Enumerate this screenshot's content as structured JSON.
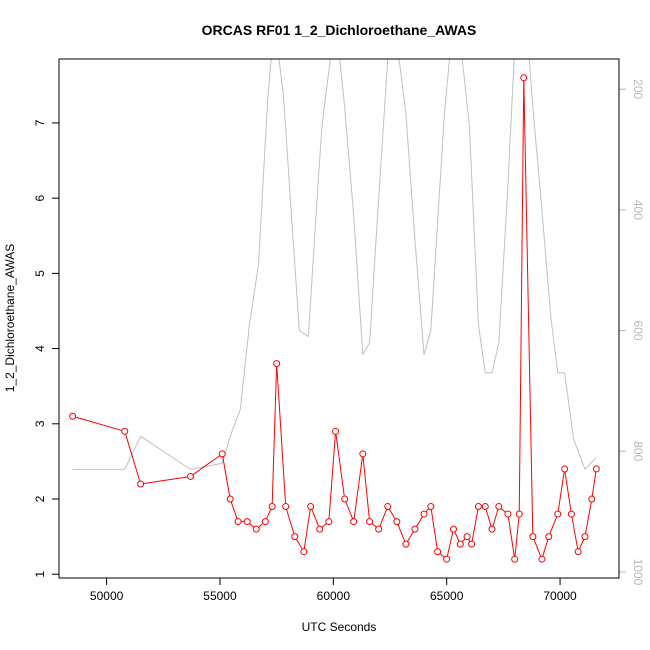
{
  "chart_data": {
    "type": "line",
    "title": "ORCAS RF01 1_2_Dichloroethane_AWAS",
    "xlabel": "UTC Seconds",
    "ylabel": "1_2_Dichloroethane_AWAS",
    "xlim": [
      47900,
      72600
    ],
    "ylim": [
      0.95,
      7.85
    ],
    "y2lim": [
      1010,
      150
    ],
    "x_ticks": [
      50000,
      55000,
      60000,
      65000,
      70000
    ],
    "y_ticks": [
      1,
      2,
      3,
      4,
      5,
      6,
      7
    ],
    "y2_ticks": [
      200,
      400,
      600,
      800,
      1000
    ],
    "grid": false,
    "legend": "none",
    "series": [
      {
        "axis": "left",
        "color": "#ff0000",
        "markers": "open-circle",
        "x": [
          48500,
          50800,
          51500,
          53700,
          55100,
          55450,
          55800,
          56200,
          56600,
          57000,
          57300,
          57500,
          57900,
          58300,
          58700,
          59000,
          59400,
          59800,
          60100,
          60500,
          60900,
          61300,
          61600,
          62000,
          62400,
          62800,
          63200,
          63600,
          64000,
          64300,
          64600,
          65000,
          65300,
          65600,
          65900,
          66100,
          66400,
          66700,
          67000,
          67300,
          67700,
          68000,
          68200,
          68400,
          68800,
          69200,
          69500,
          69900,
          70200,
          70500,
          70800,
          71100,
          71400,
          71600
        ],
        "y": [
          3.1,
          2.9,
          2.2,
          2.3,
          2.6,
          2.0,
          1.7,
          1.7,
          1.6,
          1.7,
          1.9,
          3.8,
          1.9,
          1.5,
          1.3,
          1.9,
          1.6,
          1.7,
          2.9,
          2.0,
          1.7,
          2.6,
          1.7,
          1.6,
          1.9,
          1.7,
          1.4,
          1.6,
          1.8,
          1.9,
          1.3,
          1.2,
          1.6,
          1.4,
          1.5,
          1.4,
          1.9,
          1.9,
          1.6,
          1.9,
          1.8,
          1.2,
          1.8,
          7.6,
          1.5,
          1.2,
          1.5,
          1.8,
          2.4,
          1.8,
          1.3,
          1.5,
          2.0,
          2.4
        ]
      },
      {
        "axis": "right",
        "color": "#c0c0c0",
        "markers": "none",
        "x": [
          48500,
          50800,
          51500,
          53700,
          55100,
          55500,
          55900,
          56300,
          56700,
          57100,
          57300,
          57500,
          57800,
          58100,
          58500,
          58900,
          59200,
          59500,
          59900,
          60200,
          60500,
          60900,
          61300,
          61600,
          62000,
          62400,
          62800,
          63200,
          63600,
          64000,
          64300,
          64600,
          64900,
          65200,
          65600,
          66000,
          66400,
          66700,
          67000,
          67300,
          67700,
          68000,
          68200,
          68500,
          68800,
          69200,
          69600,
          69900,
          70200,
          70600,
          71100,
          71600
        ],
        "y": [
          830,
          830,
          775,
          830,
          820,
          770,
          730,
          590,
          490,
          220,
          130,
          120,
          210,
          380,
          600,
          610,
          430,
          260,
          140,
          120,
          230,
          410,
          640,
          620,
          380,
          150,
          120,
          240,
          450,
          640,
          600,
          420,
          240,
          120,
          120,
          260,
          590,
          670,
          670,
          620,
          360,
          130,
          110,
          80,
          230,
          400,
          580,
          670,
          670,
          780,
          830,
          810
        ]
      }
    ]
  }
}
